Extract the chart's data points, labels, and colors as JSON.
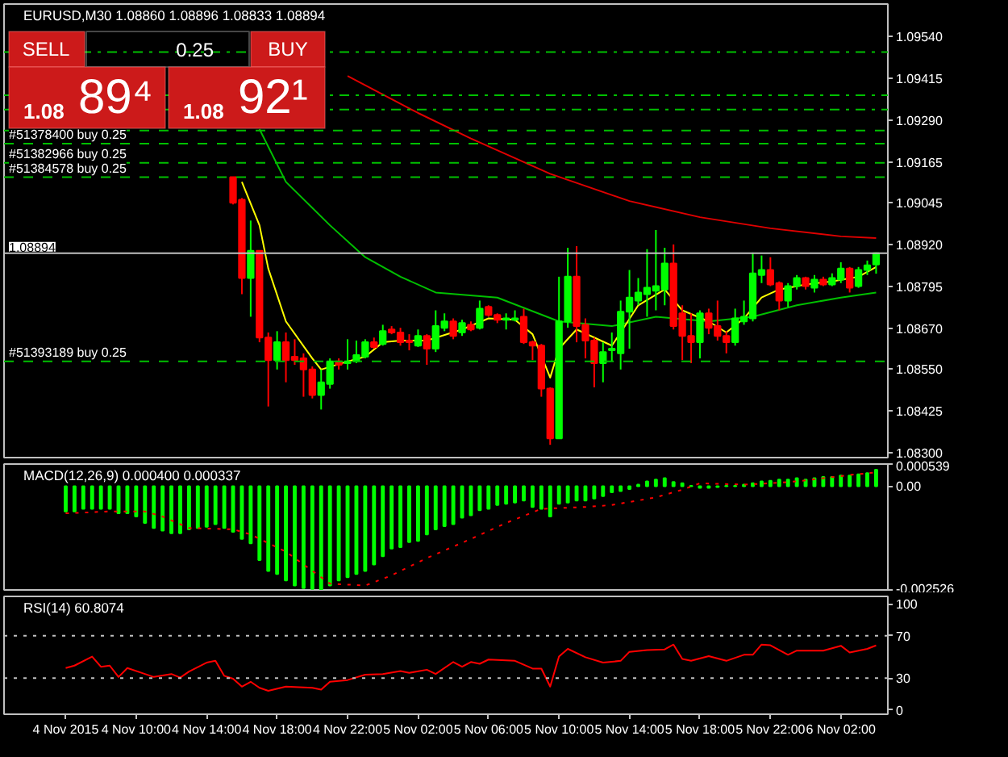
{
  "chart_data": [
    {
      "type": "candlestick",
      "title": "EURUSD,M30 1.08860 1.08896 1.08833 1.08894",
      "xlim": [
        "2015-11-04T02:30",
        "2015-11-06T04:40"
      ],
      "ylim": [
        1.08286,
        1.09635
      ],
      "yticks": [
        {
          "value": 1.0954,
          "label": "1.09540"
        },
        1.09415,
        {
          "value": 1.0929,
          "label": "1.09290"
        },
        1.09165,
        1.09045,
        {
          "value": 1.0892,
          "label": "1.08920"
        },
        1.08795,
        {
          "value": 1.0867,
          "label": "1.08670"
        },
        {
          "value": 1.0855,
          "label": "1.08550"
        },
        1.08425,
        {
          "value": 1.083,
          "label": "1.08300"
        }
      ],
      "tick_labels": "y",
      "x": [
        "2015-11-04T15:30",
        "2015-11-04T16:00",
        "2015-11-04T16:30",
        "2015-11-04T17:00",
        "2015-11-04T17:30",
        "2015-11-04T18:00",
        "2015-11-04T18:30",
        "2015-11-04T19:00",
        "2015-11-04T19:30",
        "2015-11-04T20:00",
        "2015-11-04T20:30",
        "2015-11-04T21:00",
        "2015-11-04T21:30",
        "2015-11-04T22:00",
        "2015-11-04T22:30",
        "2015-11-04T23:00",
        "2015-11-04T23:30",
        "2015-11-05T00:00",
        "2015-11-05T00:30",
        "2015-11-05T01:00",
        "2015-11-05T01:30",
        "2015-11-05T02:00",
        "2015-11-05T02:30",
        "2015-11-05T03:00",
        "2015-11-05T03:30",
        "2015-11-05T04:00",
        "2015-11-05T04:30",
        "2015-11-05T05:00",
        "2015-11-05T05:30",
        "2015-11-05T06:00",
        "2015-11-05T06:30",
        "2015-11-05T07:00",
        "2015-11-05T07:30",
        "2015-11-05T08:00",
        "2015-11-05T08:30",
        "2015-11-05T09:00",
        "2015-11-05T09:30",
        "2015-11-05T10:00",
        "2015-11-05T10:30",
        "2015-11-05T11:00",
        "2015-11-05T11:30",
        "2015-11-05T12:00",
        "2015-11-05T12:30",
        "2015-11-05T13:00",
        "2015-11-05T13:30",
        "2015-11-05T14:00",
        "2015-11-05T14:30",
        "2015-11-05T15:00",
        "2015-11-05T15:30",
        "2015-11-05T16:00",
        "2015-11-05T16:30",
        "2015-11-05T17:00",
        "2015-11-05T17:30",
        "2015-11-05T18:00",
        "2015-11-05T18:30",
        "2015-11-05T19:00",
        "2015-11-05T19:30",
        "2015-11-05T20:00",
        "2015-11-05T20:30",
        "2015-11-05T21:00",
        "2015-11-05T21:30",
        "2015-11-05T22:00",
        "2015-11-05T22:30",
        "2015-11-05T23:00",
        "2015-11-05T23:30",
        "2015-11-06T00:00",
        "2015-11-06T00:30",
        "2015-11-06T01:00",
        "2015-11-06T01:30",
        "2015-11-06T02:00",
        "2015-11-06T02:30",
        "2015-11-06T03:00",
        "2015-11-06T03:30",
        "2015-11-06T04:00"
      ],
      "ohlc": [
        [
          1.0912,
          1.0912,
          1.09039,
          1.09044
        ],
        [
          1.09053,
          1.09058,
          1.08772,
          1.0882
        ],
        [
          1.0882,
          1.08991,
          1.08705,
          1.08901
        ],
        [
          1.08901,
          1.08901,
          1.08629,
          1.08643
        ],
        [
          1.08643,
          1.08658,
          1.08438,
          1.08576
        ],
        [
          1.08576,
          1.08662,
          1.08548,
          1.08629
        ],
        [
          1.08629,
          1.08658,
          1.0851,
          1.08576
        ],
        [
          1.08586,
          1.08638,
          1.08562,
          1.08576
        ],
        [
          1.08581,
          1.08596,
          1.08467,
          1.08548
        ],
        [
          1.08548,
          1.08557,
          1.08462,
          1.08472
        ],
        [
          1.08472,
          1.08548,
          1.08429,
          1.0851
        ],
        [
          1.08505,
          1.08581,
          1.08491,
          1.08572
        ],
        [
          1.08572,
          1.08581,
          1.08548,
          1.08562
        ],
        [
          1.08567,
          1.08638,
          1.08548,
          1.08572
        ],
        [
          1.08572,
          1.08634,
          1.08567,
          1.08591
        ],
        [
          1.08586,
          1.08638,
          1.08581,
          1.08629
        ],
        [
          1.08629,
          1.08643,
          1.0861,
          1.08615
        ],
        [
          1.08624,
          1.08681,
          1.08619,
          1.08662
        ],
        [
          1.08667,
          1.08677,
          1.08653,
          1.08658
        ],
        [
          1.08658,
          1.08672,
          1.08619,
          1.08629
        ],
        [
          1.08634,
          1.08653,
          1.08605,
          1.08629
        ],
        [
          1.08619,
          1.08667,
          1.08615,
          1.08648
        ],
        [
          1.08648,
          1.08653,
          1.08562,
          1.0861
        ],
        [
          1.0861,
          1.08724,
          1.086,
          1.08677
        ],
        [
          1.08672,
          1.08715,
          1.08662,
          1.08691
        ],
        [
          1.08691,
          1.087,
          1.08638,
          1.08648
        ],
        [
          1.08658,
          1.08696,
          1.08648,
          1.08686
        ],
        [
          1.08681,
          1.08691,
          1.08662,
          1.08667
        ],
        [
          1.08672,
          1.08753,
          1.08667,
          1.08729
        ],
        [
          1.08734,
          1.08739,
          1.08705,
          1.0871
        ],
        [
          1.0871,
          1.08715,
          1.08686,
          1.08696
        ],
        [
          1.08696,
          1.08715,
          1.08667,
          1.087
        ],
        [
          1.08696,
          1.08724,
          1.08691,
          1.087
        ],
        [
          1.08705,
          1.08729,
          1.08624,
          1.08629
        ],
        [
          1.08629,
          1.08634,
          1.08576,
          1.08619
        ],
        [
          1.08619,
          1.08624,
          1.08467,
          1.08491
        ],
        [
          1.08491,
          1.08495,
          1.08324,
          1.08343
        ],
        [
          1.08343,
          1.08824,
          1.08343,
          1.08691
        ],
        [
          1.08691,
          1.0891,
          1.08672,
          1.08824
        ],
        [
          1.08824,
          1.08915,
          1.08629,
          1.08677
        ],
        [
          1.08681,
          1.087,
          1.08581,
          1.08634
        ],
        [
          1.08634,
          1.08643,
          1.08495,
          1.08567
        ],
        [
          1.08567,
          1.08629,
          1.0851,
          1.086
        ],
        [
          1.08605,
          1.08658,
          1.08572,
          1.0861
        ],
        [
          1.08596,
          1.08753,
          1.08548,
          1.0872
        ],
        [
          1.0872,
          1.08844,
          1.0861,
          1.08762
        ],
        [
          1.08753,
          1.0882,
          1.08739,
          1.08777
        ],
        [
          1.08772,
          1.08906,
          1.08705,
          1.08791
        ],
        [
          1.08782,
          1.08963,
          1.08724,
          1.08796
        ],
        [
          1.08786,
          1.0891,
          1.08739,
          1.08863
        ],
        [
          1.08863,
          1.0892,
          1.08667,
          1.08677
        ],
        [
          1.08715,
          1.08739,
          1.08576,
          1.08648
        ],
        [
          1.08648,
          1.08715,
          1.08567,
          1.08629
        ],
        [
          1.08629,
          1.08724,
          1.08581,
          1.08715
        ],
        [
          1.08715,
          1.08729,
          1.08653,
          1.08672
        ],
        [
          1.08677,
          1.08753,
          1.08634,
          1.08648
        ],
        [
          1.08648,
          1.08662,
          1.08596,
          1.08629
        ],
        [
          1.08629,
          1.08729,
          1.08619,
          1.087
        ],
        [
          1.08691,
          1.08753,
          1.08681,
          1.08705
        ],
        [
          1.087,
          1.08896,
          1.08691,
          1.08834
        ],
        [
          1.08829,
          1.08887,
          1.08805,
          1.08844
        ],
        [
          1.08844,
          1.08882,
          1.08796,
          1.08801
        ],
        [
          1.08805,
          1.0881,
          1.08724,
          1.08753
        ],
        [
          1.08753,
          1.08805,
          1.08734,
          1.08796
        ],
        [
          1.08796,
          1.08829,
          1.08786,
          1.0882
        ],
        [
          1.0882,
          1.08824,
          1.08786,
          1.08796
        ],
        [
          1.08791,
          1.08829,
          1.08777,
          1.08815
        ],
        [
          1.08815,
          1.08824,
          1.08796,
          1.08801
        ],
        [
          1.08801,
          1.08834,
          1.08796,
          1.0882
        ],
        [
          1.08815,
          1.08867,
          1.08805,
          1.08848
        ],
        [
          1.08848,
          1.08853,
          1.08777,
          1.08791
        ],
        [
          1.08796,
          1.08853,
          1.08791,
          1.08844
        ],
        [
          1.08844,
          1.08872,
          1.08829,
          1.08858
        ],
        [
          1.0886,
          1.08896,
          1.08833,
          1.08894
        ]
      ],
      "series": [
        {
          "type": "line",
          "color": "#e00000",
          "x": [
            "2015-11-04T22:00",
            "2015-11-05T02:00",
            "2015-11-05T05:00",
            "2015-11-05T09:30",
            "2015-11-05T14:00",
            "2015-11-05T18:00",
            "2015-11-05T22:00",
            "2015-11-06T02:00",
            "2015-11-06T04:00"
          ],
          "values": [
            1.09421,
            1.09311,
            1.09235,
            1.0913,
            1.09049,
            1.09001,
            1.08968,
            1.08944,
            1.08939
          ]
        },
        {
          "type": "line",
          "color": "#00c000",
          "x": [
            "2015-11-04T17:00",
            "2015-11-04T18:30",
            "2015-11-04T21:00",
            "2015-11-04T23:00",
            "2015-11-05T01:00",
            "2015-11-05T03:00",
            "2015-11-05T06:30",
            "2015-11-05T10:00",
            "2015-11-05T13:00",
            "2015-11-05T15:30",
            "2015-11-05T18:30",
            "2015-11-05T21:00",
            "2015-11-05T23:30",
            "2015-11-06T02:00",
            "2015-11-06T04:00"
          ],
          "values": [
            1.09263,
            1.09106,
            1.08977,
            1.08882,
            1.08824,
            1.08777,
            1.08762,
            1.08691,
            1.08677,
            1.08705,
            1.08691,
            1.08705,
            1.08739,
            1.08762,
            1.08777
          ]
        },
        {
          "type": "line",
          "color": "#ffff00",
          "x": [
            "2015-11-04T16:00",
            "2015-11-04T17:00",
            "2015-11-04T17:30",
            "2015-11-04T18:30",
            "2015-11-04T20:00",
            "2015-11-04T20:30",
            "2015-11-04T22:00",
            "2015-11-04T23:00",
            "2015-11-05T00:00",
            "2015-11-05T01:00",
            "2015-11-05T02:30",
            "2015-11-05T04:30",
            "2015-11-05T06:00",
            "2015-11-05T07:30",
            "2015-11-05T08:30",
            "2015-11-05T09:30",
            "2015-11-05T10:00",
            "2015-11-05T11:00",
            "2015-11-05T13:00",
            "2015-11-05T13:30",
            "2015-11-05T14:30",
            "2015-11-05T16:00",
            "2015-11-05T17:00",
            "2015-11-05T18:30",
            "2015-11-05T19:30",
            "2015-11-05T20:30",
            "2015-11-05T21:30",
            "2015-11-05T22:30",
            "2015-11-06T00:00",
            "2015-11-06T01:30",
            "2015-11-06T03:00",
            "2015-11-06T04:00"
          ],
          "values": [
            1.09106,
            1.08977,
            1.08848,
            1.08691,
            1.08581,
            1.08548,
            1.08572,
            1.08586,
            1.08629,
            1.08634,
            1.08634,
            1.08667,
            1.087,
            1.08696,
            1.08653,
            1.08524,
            1.0861,
            1.08667,
            1.08619,
            1.08658,
            1.08739,
            1.08786,
            1.08724,
            1.08691,
            1.08658,
            1.087,
            1.08762,
            1.08786,
            1.08801,
            1.0881,
            1.08824,
            1.08853
          ]
        }
      ],
      "ref_lines": [
        {
          "axis": "y",
          "value": 1.09492,
          "color": "#00c000",
          "line_style": "dashdot"
        },
        {
          "axis": "y",
          "value": 1.09364,
          "color": "#00c000",
          "line_style": "dashdot"
        },
        {
          "axis": "y",
          "value": 1.09321,
          "color": "#00c000",
          "line_style": "dashdot"
        },
        {
          "axis": "y",
          "value": 1.09259,
          "color": "#00c000",
          "line_style": "dashed"
        },
        {
          "axis": "y",
          "value": 1.0922,
          "label": "#51378400 buy 0.25",
          "color": "#00c000",
          "line_style": "dashed"
        },
        {
          "axis": "y",
          "value": 1.09163,
          "label": "#51382966 buy 0.25",
          "color": "#00c000",
          "line_style": "dashed"
        },
        {
          "axis": "y",
          "value": 1.0912,
          "label": "#51384578 buy 0.25",
          "color": "#00c000",
          "line_style": "dashed"
        },
        {
          "axis": "y",
          "value": 1.08572,
          "label": "#51393189 buy 0.25",
          "color": "#00c000",
          "line_style": "dashed"
        },
        {
          "axis": "y",
          "value": 1.08894,
          "label": "1.08894",
          "color": "#c0c0c0",
          "line_style": "solid"
        }
      ],
      "annotations": [
        "SELL",
        "0.25",
        "BUY",
        "1.08 89⁴",
        "1.08 92¹"
      ]
    },
    {
      "type": "bar",
      "title": "MACD(12,26,9) 0.000400 0.000337",
      "xlim": [
        "2015-11-04T02:30",
        "2015-11-06T04:40"
      ],
      "ylim": [
        -0.002526,
        0.000539
      ],
      "yticks": [
        -0.002526,
        {
          "value": 0,
          "label": "0.00"
        },
        0.000539
      ],
      "tick_labels": "y",
      "x": [
        "2015-11-04T06:00",
        "2015-11-04T06:30",
        "2015-11-04T07:00",
        "2015-11-04T07:30",
        "2015-11-04T08:00",
        "2015-11-04T08:30",
        "2015-11-04T09:00",
        "2015-11-04T09:30",
        "2015-11-04T10:00",
        "2015-11-04T10:30",
        "2015-11-04T11:00",
        "2015-11-04T11:30",
        "2015-11-04T12:00",
        "2015-11-04T12:30",
        "2015-11-04T13:00",
        "2015-11-04T13:30",
        "2015-11-04T14:00",
        "2015-11-04T14:30",
        "2015-11-04T15:00",
        "2015-11-04T15:30",
        "2015-11-04T16:00",
        "2015-11-04T16:30",
        "2015-11-04T17:00",
        "2015-11-04T17:30",
        "2015-11-04T18:00",
        "2015-11-04T18:30",
        "2015-11-04T19:00",
        "2015-11-04T19:30",
        "2015-11-04T20:00",
        "2015-11-04T20:30",
        "2015-11-04T21:00",
        "2015-11-04T21:30",
        "2015-11-04T22:00",
        "2015-11-04T22:30",
        "2015-11-04T23:00",
        "2015-11-04T23:30",
        "2015-11-05T00:00",
        "2015-11-05T00:30",
        "2015-11-05T01:00",
        "2015-11-05T01:30",
        "2015-11-05T02:00",
        "2015-11-05T02:30",
        "2015-11-05T03:00",
        "2015-11-05T03:30",
        "2015-11-05T04:00",
        "2015-11-05T04:30",
        "2015-11-05T05:00",
        "2015-11-05T05:30",
        "2015-11-05T06:00",
        "2015-11-05T06:30",
        "2015-11-05T07:00",
        "2015-11-05T07:30",
        "2015-11-05T08:00",
        "2015-11-05T08:30",
        "2015-11-05T09:00",
        "2015-11-05T09:30",
        "2015-11-05T10:00",
        "2015-11-05T10:30",
        "2015-11-05T11:00",
        "2015-11-05T11:30",
        "2015-11-05T12:00",
        "2015-11-05T12:30",
        "2015-11-05T13:00",
        "2015-11-05T13:30",
        "2015-11-05T14:00",
        "2015-11-05T14:30",
        "2015-11-05T15:00",
        "2015-11-05T15:30",
        "2015-11-05T16:00",
        "2015-11-05T16:30",
        "2015-11-05T17:00",
        "2015-11-05T17:30",
        "2015-11-05T18:00",
        "2015-11-05T18:30",
        "2015-11-05T19:00",
        "2015-11-05T19:30",
        "2015-11-05T20:00",
        "2015-11-05T20:30",
        "2015-11-05T21:00",
        "2015-11-05T21:30",
        "2015-11-05T22:00",
        "2015-11-05T22:30",
        "2015-11-05T23:00",
        "2015-11-05T23:30",
        "2015-11-06T00:00",
        "2015-11-06T00:30",
        "2015-11-06T01:00",
        "2015-11-06T01:30",
        "2015-11-06T02:00",
        "2015-11-06T02:30",
        "2015-11-06T03:00",
        "2015-11-06T03:30",
        "2015-11-06T04:00"
      ],
      "series": [
        {
          "type": "bar",
          "color": "#00ff00",
          "values": [
            -0.000615,
            -0.000615,
            -0.000552,
            -0.000552,
            -0.000552,
            -0.000552,
            -0.000661,
            -0.000661,
            -0.000739,
            -0.000895,
            -0.001019,
            -0.001081,
            -0.001144,
            -0.001144,
            -0.00105,
            -0.001019,
            -0.000988,
            -0.000926,
            -0.001019,
            -0.001113,
            -0.001284,
            -0.001393,
            -0.001797,
            -0.002062,
            -0.00214,
            -0.002295,
            -0.00242,
            -0.002482,
            -0.0025,
            -0.00252,
            -0.00242,
            -0.002295,
            -0.002217,
            -0.00214,
            -0.002062,
            -0.001906,
            -0.001704,
            -0.001517,
            -0.001486,
            -0.001362,
            -0.00133,
            -0.001175,
            -0.00105,
            -0.000973,
            -0.000926,
            -0.00077,
            -0.000708,
            -0.000584,
            -0.000552,
            -0.000459,
            -0.000428,
            -0.000397,
            -0.00035,
            -0.000506,
            -0.000552,
            -0.000739,
            -0.000428,
            -0.000397,
            -0.00035,
            -0.00035,
            -0.000303,
            -0.000241,
            -0.000148,
            -0.000117,
            -7e-05,
            3.9e-05,
            0.000117,
            0.000163,
            0.000195,
            0.000101,
            7e-05,
            8e-06,
            -3.9e-05,
            -3.9e-05,
            -2.3e-05,
            8e-06,
            8e-06,
            3.9e-05,
            7e-05,
            0.000117,
            0.000132,
            0.000163,
            0.000163,
            0.000195,
            0.000163,
            0.000195,
            0.000226,
            0.000226,
            0.000257,
            0.000257,
            0.000288,
            0.000319,
            0.0004
          ]
        },
        {
          "type": "line",
          "color": "#ff0000",
          "line_style": "dotted",
          "x": [
            "2015-11-04T06:00",
            "2015-11-04T08:30",
            "2015-11-04T10:30",
            "2015-11-04T11:30",
            "2015-11-04T13:00",
            "2015-11-04T15:30",
            "2015-11-04T16:30",
            "2015-11-04T18:30",
            "2015-11-04T20:00",
            "2015-11-04T21:00",
            "2015-11-04T23:00",
            "2015-11-05T00:30",
            "2015-11-05T02:30",
            "2015-11-05T05:00",
            "2015-11-05T07:00",
            "2015-11-05T09:00",
            "2015-11-05T11:30",
            "2015-11-05T13:00",
            "2015-11-05T15:30",
            "2015-11-05T17:00",
            "2015-11-05T18:00",
            "2015-11-05T20:30",
            "2015-11-05T22:00",
            "2015-11-05T23:30",
            "2015-11-06T02:30",
            "2015-11-06T04:00"
          ],
          "values": [
            -0.000661,
            -0.000615,
            -0.000615,
            -0.000739,
            -0.001019,
            -0.00105,
            -0.001175,
            -0.001595,
            -0.002062,
            -0.002373,
            -0.00242,
            -0.002171,
            -0.001751,
            -0.001284,
            -0.000895,
            -0.000552,
            -0.000506,
            -0.000459,
            -0.000272,
            -8.6e-05,
            7e-05,
            3.9e-05,
            7e-05,
            0.000117,
            0.000272,
            0.000337
          ]
        }
      ]
    },
    {
      "type": "line",
      "title": "RSI(14) 60.8074",
      "color": "#ff0000",
      "xlim": [
        "2015-11-04T02:30",
        "2015-11-06T04:40"
      ],
      "ylim": [
        -4,
        107
      ],
      "yticks": [
        0,
        30,
        70,
        100
      ],
      "xticks": [
        {
          "value": "2015-11-04T06:00",
          "label": "4 Nov 2015"
        },
        {
          "value": "2015-11-04T10:00",
          "label": "4 Nov 10:00"
        },
        {
          "value": "2015-11-04T14:00",
          "label": "4 Nov 14:00"
        },
        {
          "value": "2015-11-04T18:00",
          "label": "4 Nov 18:00"
        },
        {
          "value": "2015-11-04T22:00",
          "label": "4 Nov 22:00"
        },
        {
          "value": "2015-11-05T02:00",
          "label": "5 Nov 02:00"
        },
        {
          "value": "2015-11-05T06:00",
          "label": "5 Nov 06:00"
        },
        {
          "value": "2015-11-05T10:00",
          "label": "5 Nov 10:00"
        },
        {
          "value": "2015-11-05T14:00",
          "label": "5 Nov 14:00"
        },
        {
          "value": "2015-11-05T18:00",
          "label": "5 Nov 18:00"
        },
        {
          "value": "2015-11-05T22:00",
          "label": "5 Nov 22:00"
        },
        {
          "value": "2015-11-06T02:00",
          "label": "6 Nov 02:00"
        }
      ],
      "x": [
        "2015-11-04T06:00",
        "2015-11-04T06:30",
        "2015-11-04T07:30",
        "2015-11-04T08:00",
        "2015-11-04T08:30",
        "2015-11-04T09:00",
        "2015-11-04T09:30",
        "2015-11-04T10:30",
        "2015-11-04T11:00",
        "2015-11-04T12:00",
        "2015-11-04T12:30",
        "2015-11-04T13:00",
        "2015-11-04T14:00",
        "2015-11-04T14:30",
        "2015-11-04T15:00",
        "2015-11-04T15:30",
        "2015-11-04T16:00",
        "2015-11-04T16:30",
        "2015-11-04T17:00",
        "2015-11-04T17:30",
        "2015-11-04T18:30",
        "2015-11-04T20:00",
        "2015-11-04T20:30",
        "2015-11-04T21:00",
        "2015-11-04T22:00",
        "2015-11-04T23:00",
        "2015-11-05T00:00",
        "2015-11-05T01:00",
        "2015-11-05T01:30",
        "2015-11-05T02:30",
        "2015-11-05T03:00",
        "2015-11-05T04:00",
        "2015-11-05T04:30",
        "2015-11-05T05:00",
        "2015-11-05T05:30",
        "2015-11-05T06:00",
        "2015-11-05T07:30",
        "2015-11-05T08:30",
        "2015-11-05T09:00",
        "2015-11-05T09:30",
        "2015-11-05T10:00",
        "2015-11-05T10:30",
        "2015-11-05T11:30",
        "2015-11-05T12:30",
        "2015-11-05T13:30",
        "2015-11-05T14:00",
        "2015-11-05T15:00",
        "2015-11-05T16:00",
        "2015-11-05T16:30",
        "2015-11-05T17:00",
        "2015-11-05T17:30",
        "2015-11-05T18:30",
        "2015-11-05T19:30",
        "2015-11-05T20:30",
        "2015-11-05T21:00",
        "2015-11-05T21:30",
        "2015-11-05T22:00",
        "2015-11-05T23:00",
        "2015-11-05T23:30",
        "2015-11-06T01:00",
        "2015-11-06T02:00",
        "2015-11-06T02:30",
        "2015-11-06T03:30",
        "2015-11-06T04:00"
      ],
      "values": [
        39.5,
        41.8,
        50.3,
        40.7,
        41.8,
        31.1,
        39.5,
        33.9,
        31.1,
        33.9,
        30.5,
        36.2,
        44.6,
        46.3,
        32.2,
        29.4,
        22.0,
        26.6,
        20.9,
        18.1,
        22.0,
        20.9,
        19.2,
        26.6,
        28.2,
        33.3,
        33.9,
        36.7,
        35.0,
        37.9,
        33.9,
        45.2,
        40.7,
        45.2,
        43.5,
        47.5,
        46.3,
        39.0,
        39.0,
        22.0,
        50.3,
        57.6,
        49.7,
        44.6,
        46.3,
        54.8,
        56.5,
        57.1,
        61.6,
        48.0,
        46.3,
        50.8,
        46.3,
        52.0,
        52.0,
        61.6,
        61.0,
        52.0,
        55.9,
        55.9,
        60.5,
        54.2,
        57.6,
        60.8
      ],
      "ref_lines": [
        {
          "axis": "y",
          "value": 70,
          "color": "#c0c0c0",
          "line_style": "dotted"
        },
        {
          "axis": "y",
          "value": 30,
          "color": "#c0c0c0",
          "line_style": "dotted"
        }
      ]
    }
  ]
}
